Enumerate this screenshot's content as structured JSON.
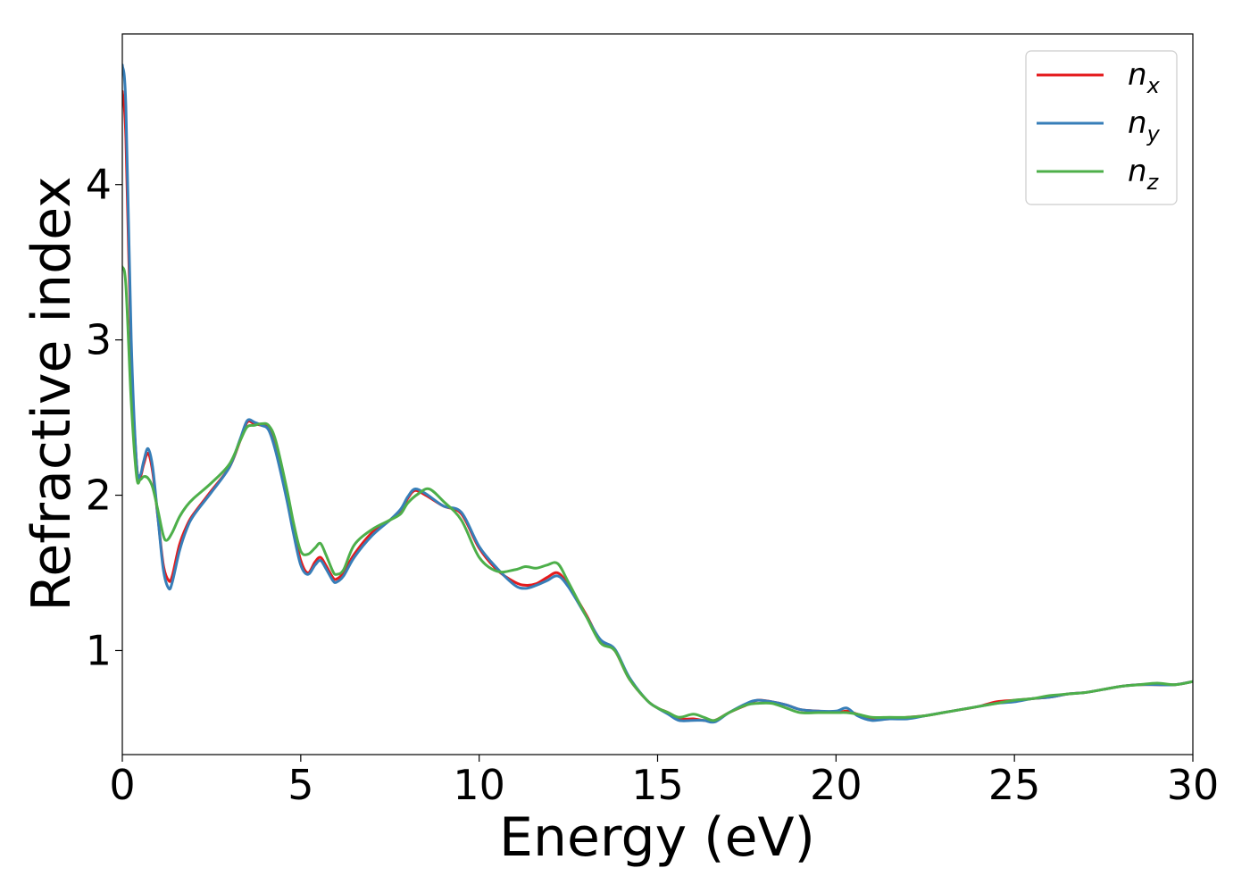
{
  "chart_data": {
    "type": "line",
    "title": "",
    "xlabel": "Energy (eV)",
    "ylabel": "Refractive index",
    "xlim": [
      0,
      30
    ],
    "ylim": [
      0.33,
      4.97
    ],
    "xticks": [
      0,
      5,
      10,
      15,
      20,
      25,
      30
    ],
    "yticks": [
      1,
      2,
      3,
      4
    ],
    "grid": false,
    "legend_position": "top-right",
    "series": [
      {
        "name": "nx",
        "label_main": "n",
        "label_sub": "x",
        "color": "#e41a1c",
        "points": [
          [
            0,
            4.6
          ],
          [
            0.1,
            4.3
          ],
          [
            0.25,
            2.9
          ],
          [
            0.4,
            2.2
          ],
          [
            0.5,
            2.12
          ],
          [
            0.6,
            2.2
          ],
          [
            0.72,
            2.27
          ],
          [
            0.85,
            2.15
          ],
          [
            1.0,
            1.85
          ],
          [
            1.15,
            1.55
          ],
          [
            1.3,
            1.45
          ],
          [
            1.4,
            1.48
          ],
          [
            1.6,
            1.68
          ],
          [
            1.8,
            1.8
          ],
          [
            2.0,
            1.88
          ],
          [
            2.5,
            2.03
          ],
          [
            3.0,
            2.18
          ],
          [
            3.3,
            2.35
          ],
          [
            3.5,
            2.47
          ],
          [
            3.7,
            2.46
          ],
          [
            3.9,
            2.45
          ],
          [
            4.1,
            2.44
          ],
          [
            4.3,
            2.3
          ],
          [
            4.6,
            2.0
          ],
          [
            4.8,
            1.78
          ],
          [
            5.0,
            1.58
          ],
          [
            5.2,
            1.5
          ],
          [
            5.4,
            1.57
          ],
          [
            5.55,
            1.6
          ],
          [
            5.7,
            1.55
          ],
          [
            5.9,
            1.47
          ],
          [
            6.0,
            1.46
          ],
          [
            6.2,
            1.5
          ],
          [
            6.5,
            1.62
          ],
          [
            7.0,
            1.76
          ],
          [
            7.5,
            1.84
          ],
          [
            7.8,
            1.9
          ],
          [
            8.0,
            1.98
          ],
          [
            8.2,
            2.03
          ],
          [
            8.5,
            2.0
          ],
          [
            9.0,
            1.93
          ],
          [
            9.5,
            1.88
          ],
          [
            10.0,
            1.66
          ],
          [
            10.5,
            1.52
          ],
          [
            11.0,
            1.44
          ],
          [
            11.3,
            1.42
          ],
          [
            11.6,
            1.43
          ],
          [
            11.9,
            1.47
          ],
          [
            12.2,
            1.5
          ],
          [
            12.5,
            1.42
          ],
          [
            13.0,
            1.23
          ],
          [
            13.4,
            1.06
          ],
          [
            13.8,
            1.0
          ],
          [
            14.2,
            0.82
          ],
          [
            14.7,
            0.68
          ],
          [
            15.0,
            0.63
          ],
          [
            15.3,
            0.6
          ],
          [
            15.6,
            0.56
          ],
          [
            16.0,
            0.56
          ],
          [
            16.3,
            0.55
          ],
          [
            16.6,
            0.55
          ],
          [
            17.0,
            0.6
          ],
          [
            17.5,
            0.65
          ],
          [
            17.8,
            0.68
          ],
          [
            18.2,
            0.67
          ],
          [
            18.6,
            0.65
          ],
          [
            19.0,
            0.62
          ],
          [
            19.5,
            0.61
          ],
          [
            20.0,
            0.6
          ],
          [
            20.3,
            0.61
          ],
          [
            20.6,
            0.59
          ],
          [
            21.0,
            0.56
          ],
          [
            21.5,
            0.56
          ],
          [
            22.0,
            0.57
          ],
          [
            22.5,
            0.58
          ],
          [
            23.0,
            0.6
          ],
          [
            23.5,
            0.62
          ],
          [
            24.0,
            0.64
          ],
          [
            24.5,
            0.67
          ],
          [
            25.0,
            0.68
          ],
          [
            25.5,
            0.69
          ],
          [
            26.0,
            0.7
          ],
          [
            26.5,
            0.72
          ],
          [
            27.0,
            0.73
          ],
          [
            27.5,
            0.75
          ],
          [
            28.0,
            0.77
          ],
          [
            28.5,
            0.78
          ],
          [
            29.0,
            0.78
          ],
          [
            29.5,
            0.78
          ],
          [
            30.0,
            0.8
          ]
        ]
      },
      {
        "name": "ny",
        "label_main": "n",
        "label_sub": "y",
        "color": "#377eb8",
        "points": [
          [
            0,
            4.77
          ],
          [
            0.1,
            4.5
          ],
          [
            0.25,
            3.0
          ],
          [
            0.4,
            2.2
          ],
          [
            0.5,
            2.13
          ],
          [
            0.6,
            2.22
          ],
          [
            0.72,
            2.3
          ],
          [
            0.85,
            2.18
          ],
          [
            1.0,
            1.85
          ],
          [
            1.15,
            1.52
          ],
          [
            1.3,
            1.4
          ],
          [
            1.4,
            1.44
          ],
          [
            1.6,
            1.64
          ],
          [
            1.8,
            1.78
          ],
          [
            2.0,
            1.87
          ],
          [
            2.5,
            2.02
          ],
          [
            3.0,
            2.18
          ],
          [
            3.3,
            2.36
          ],
          [
            3.5,
            2.48
          ],
          [
            3.7,
            2.47
          ],
          [
            3.9,
            2.45
          ],
          [
            4.1,
            2.42
          ],
          [
            4.3,
            2.28
          ],
          [
            4.6,
            1.98
          ],
          [
            4.8,
            1.75
          ],
          [
            5.0,
            1.55
          ],
          [
            5.2,
            1.49
          ],
          [
            5.4,
            1.55
          ],
          [
            5.55,
            1.58
          ],
          [
            5.7,
            1.53
          ],
          [
            5.9,
            1.45
          ],
          [
            6.0,
            1.44
          ],
          [
            6.2,
            1.48
          ],
          [
            6.5,
            1.6
          ],
          [
            7.0,
            1.74
          ],
          [
            7.5,
            1.84
          ],
          [
            7.8,
            1.91
          ],
          [
            8.0,
            1.99
          ],
          [
            8.2,
            2.04
          ],
          [
            8.5,
            2.01
          ],
          [
            9.0,
            1.93
          ],
          [
            9.5,
            1.89
          ],
          [
            10.0,
            1.67
          ],
          [
            10.5,
            1.53
          ],
          [
            11.0,
            1.42
          ],
          [
            11.3,
            1.4
          ],
          [
            11.6,
            1.42
          ],
          [
            11.9,
            1.45
          ],
          [
            12.2,
            1.48
          ],
          [
            12.5,
            1.41
          ],
          [
            13.0,
            1.22
          ],
          [
            13.4,
            1.07
          ],
          [
            13.8,
            1.01
          ],
          [
            14.2,
            0.83
          ],
          [
            14.7,
            0.68
          ],
          [
            15.0,
            0.63
          ],
          [
            15.3,
            0.59
          ],
          [
            15.6,
            0.55
          ],
          [
            16.0,
            0.55
          ],
          [
            16.3,
            0.55
          ],
          [
            16.6,
            0.54
          ],
          [
            17.0,
            0.6
          ],
          [
            17.5,
            0.66
          ],
          [
            17.8,
            0.68
          ],
          [
            18.2,
            0.67
          ],
          [
            18.6,
            0.65
          ],
          [
            19.0,
            0.62
          ],
          [
            19.5,
            0.61
          ],
          [
            20.0,
            0.61
          ],
          [
            20.3,
            0.63
          ],
          [
            20.6,
            0.58
          ],
          [
            21.0,
            0.55
          ],
          [
            21.5,
            0.56
          ],
          [
            22.0,
            0.56
          ],
          [
            22.5,
            0.58
          ],
          [
            23.0,
            0.6
          ],
          [
            23.5,
            0.62
          ],
          [
            24.0,
            0.64
          ],
          [
            24.5,
            0.66
          ],
          [
            25.0,
            0.67
          ],
          [
            25.5,
            0.69
          ],
          [
            26.0,
            0.7
          ],
          [
            26.5,
            0.72
          ],
          [
            27.0,
            0.73
          ],
          [
            27.5,
            0.75
          ],
          [
            28.0,
            0.77
          ],
          [
            28.5,
            0.78
          ],
          [
            29.0,
            0.78
          ],
          [
            29.5,
            0.78
          ],
          [
            30.0,
            0.8
          ]
        ]
      },
      {
        "name": "nz",
        "label_main": "n",
        "label_sub": "z",
        "color": "#4daf4a",
        "points": [
          [
            0,
            3.47
          ],
          [
            0.1,
            3.35
          ],
          [
            0.25,
            2.6
          ],
          [
            0.4,
            2.12
          ],
          [
            0.5,
            2.1
          ],
          [
            0.6,
            2.12
          ],
          [
            0.72,
            2.11
          ],
          [
            0.85,
            2.05
          ],
          [
            1.0,
            1.9
          ],
          [
            1.15,
            1.74
          ],
          [
            1.25,
            1.71
          ],
          [
            1.4,
            1.76
          ],
          [
            1.6,
            1.86
          ],
          [
            1.8,
            1.93
          ],
          [
            2.0,
            1.98
          ],
          [
            2.5,
            2.08
          ],
          [
            3.0,
            2.2
          ],
          [
            3.3,
            2.35
          ],
          [
            3.5,
            2.44
          ],
          [
            3.7,
            2.45
          ],
          [
            3.9,
            2.46
          ],
          [
            4.1,
            2.45
          ],
          [
            4.3,
            2.35
          ],
          [
            4.6,
            2.05
          ],
          [
            4.8,
            1.82
          ],
          [
            5.0,
            1.64
          ],
          [
            5.2,
            1.62
          ],
          [
            5.4,
            1.66
          ],
          [
            5.55,
            1.69
          ],
          [
            5.7,
            1.62
          ],
          [
            5.9,
            1.51
          ],
          [
            6.0,
            1.49
          ],
          [
            6.2,
            1.52
          ],
          [
            6.5,
            1.68
          ],
          [
            7.0,
            1.78
          ],
          [
            7.5,
            1.84
          ],
          [
            7.8,
            1.88
          ],
          [
            8.0,
            1.95
          ],
          [
            8.3,
            2.01
          ],
          [
            8.6,
            2.04
          ],
          [
            9.0,
            1.96
          ],
          [
            9.5,
            1.84
          ],
          [
            10.0,
            1.6
          ],
          [
            10.5,
            1.51
          ],
          [
            11.0,
            1.52
          ],
          [
            11.3,
            1.54
          ],
          [
            11.6,
            1.53
          ],
          [
            11.9,
            1.55
          ],
          [
            12.2,
            1.56
          ],
          [
            12.5,
            1.44
          ],
          [
            13.0,
            1.22
          ],
          [
            13.4,
            1.05
          ],
          [
            13.8,
            1.0
          ],
          [
            14.2,
            0.82
          ],
          [
            14.7,
            0.68
          ],
          [
            15.0,
            0.63
          ],
          [
            15.3,
            0.6
          ],
          [
            15.6,
            0.57
          ],
          [
            16.0,
            0.59
          ],
          [
            16.3,
            0.57
          ],
          [
            16.6,
            0.55
          ],
          [
            17.0,
            0.6
          ],
          [
            17.5,
            0.65
          ],
          [
            17.8,
            0.66
          ],
          [
            18.2,
            0.66
          ],
          [
            18.6,
            0.63
          ],
          [
            19.0,
            0.6
          ],
          [
            19.5,
            0.6
          ],
          [
            20.0,
            0.6
          ],
          [
            20.3,
            0.6
          ],
          [
            20.6,
            0.59
          ],
          [
            21.0,
            0.57
          ],
          [
            21.5,
            0.57
          ],
          [
            22.0,
            0.57
          ],
          [
            22.5,
            0.58
          ],
          [
            23.0,
            0.6
          ],
          [
            23.5,
            0.62
          ],
          [
            24.0,
            0.64
          ],
          [
            24.5,
            0.66
          ],
          [
            25.0,
            0.68
          ],
          [
            25.5,
            0.69
          ],
          [
            26.0,
            0.71
          ],
          [
            26.5,
            0.72
          ],
          [
            27.0,
            0.73
          ],
          [
            27.5,
            0.75
          ],
          [
            28.0,
            0.77
          ],
          [
            28.5,
            0.78
          ],
          [
            29.0,
            0.79
          ],
          [
            29.5,
            0.78
          ],
          [
            30.0,
            0.8
          ]
        ]
      }
    ]
  }
}
